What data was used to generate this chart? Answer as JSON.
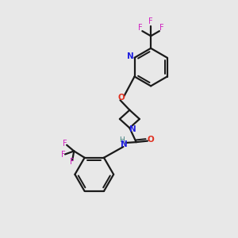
{
  "bg_color": "#e8e8e8",
  "bond_color": "#1a1a1a",
  "N_color": "#2020e0",
  "O_color": "#e03020",
  "F_color": "#d020c0",
  "H_color": "#408080",
  "line_width": 1.6,
  "figsize": [
    3.0,
    3.0
  ],
  "dpi": 100,
  "xlim": [
    0,
    10
  ],
  "ylim": [
    0,
    10
  ]
}
